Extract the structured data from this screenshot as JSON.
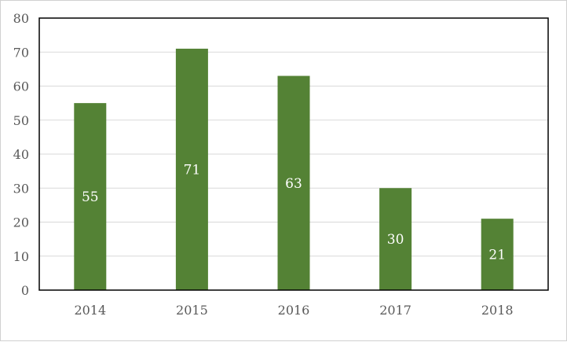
{
  "chart_data": {
    "type": "bar",
    "categories": [
      "2014",
      "2015",
      "2016",
      "2017",
      "2018"
    ],
    "values": [
      55,
      71,
      63,
      30,
      21
    ],
    "title": "",
    "xlabel": "",
    "ylabel": "",
    "ylim": [
      0,
      80
    ],
    "yticks": [
      0,
      10,
      20,
      30,
      40,
      50,
      60,
      70,
      80
    ],
    "grid": true,
    "legend": "none",
    "data_labels": true,
    "colors": {
      "bar": "#548235",
      "grid": "#d9d9d9",
      "axis": "#000000",
      "tick_text": "#595959",
      "label_text": "#ffffff"
    }
  }
}
